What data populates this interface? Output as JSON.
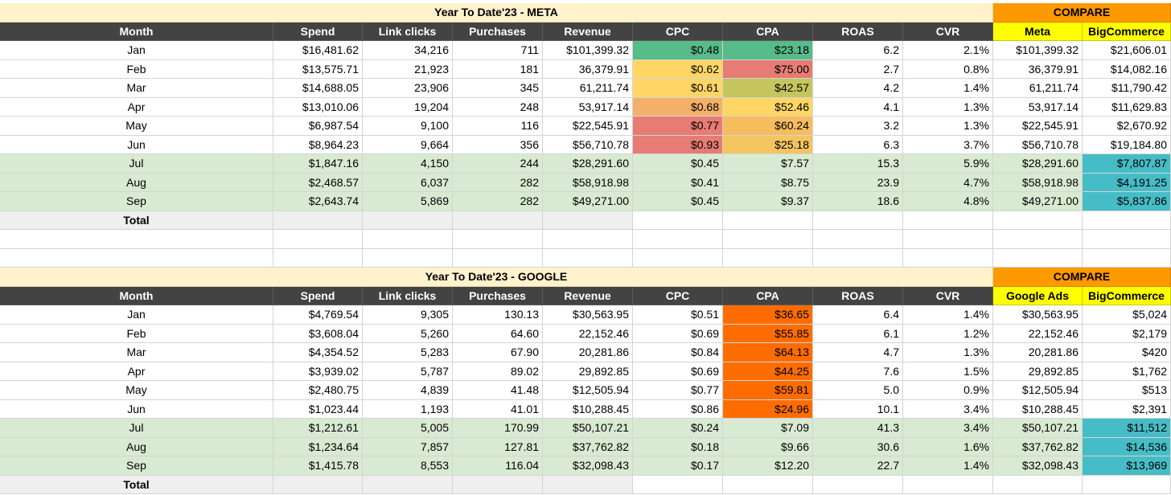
{
  "colors": {
    "header_bg": "#434343",
    "title_bg": "#fff2cc",
    "compare_bg": "#ff9900",
    "compare_sub_bg": "#ffff00",
    "highlight_row_bg": "#d9ead3",
    "total_bg": "#efefef",
    "teal": "#46bdc6",
    "cpa_orange": "#ff6d01"
  },
  "meta": {
    "title": "Year To Date'23 - META",
    "compare_title": "COMPARE",
    "headers": [
      "Month",
      "Spend",
      "Link clicks",
      "Purchases",
      "Revenue",
      "CPC",
      "CPA",
      "ROAS",
      "CVR",
      "Meta",
      "BigCommerce"
    ],
    "rows": [
      [
        "Jan",
        "$16,481.62",
        "34,216",
        "711",
        "$101,399.32",
        "$0.48",
        "$23.18",
        "6.2",
        "2.1%",
        "$101,399.32",
        "$21,606.01"
      ],
      [
        "Feb",
        "$13,575.71",
        "21,923",
        "181",
        "36,379.91",
        "$0.62",
        "$75.00",
        "2.7",
        "0.8%",
        "36,379.91",
        "$14,082.16"
      ],
      [
        "Mar",
        "$14,688.05",
        "23,906",
        "345",
        "61,211.74",
        "$0.61",
        "$42.57",
        "4.2",
        "1.4%",
        "61,211.74",
        "$11,790.42"
      ],
      [
        "Apr",
        "$13,010.06",
        "19,204",
        "248",
        "53,917.14",
        "$0.68",
        "$52.46",
        "4.1",
        "1.3%",
        "53,917.14",
        "$11,629.83"
      ],
      [
        "May",
        "$6,987.54",
        "9,100",
        "116",
        "$22,545.91",
        "$0.77",
        "$60.24",
        "3.2",
        "1.3%",
        "$22,545.91",
        "$2,670.92"
      ],
      [
        "Jun",
        "$8,964.23",
        "9,664",
        "356",
        "$56,710.78",
        "$0.93",
        "$25.18",
        "6.3",
        "3.7%",
        "$56,710.78",
        "$19,184.80"
      ],
      [
        "Jul",
        "$1,847.16",
        "4,150",
        "244",
        "$28,291.60",
        "$0.45",
        "$7.57",
        "15.3",
        "5.9%",
        "$28,291.60",
        "$7,807.87"
      ],
      [
        "Aug",
        "$2,468.57",
        "6,037",
        "282",
        "$58,918.98",
        "$0.41",
        "$8.75",
        "23.9",
        "4.7%",
        "$58,918.98",
        "$4,191.25"
      ],
      [
        "Sep",
        "$2,643.74",
        "5,869",
        "282",
        "$49,271.00",
        "$0.45",
        "$9.37",
        "18.6",
        "4.8%",
        "$49,271.00",
        "$5,837.86"
      ]
    ],
    "total_label": "Total",
    "cpc_colors": [
      "#57bb8a",
      "#ffd666",
      "#ffd666",
      "#f3b06b",
      "#e67c73",
      "#e67c73",
      null,
      null,
      null
    ],
    "cpa_colors": [
      "#57bb8a",
      "#e67c73",
      "#c4c65d",
      "#ffd666",
      "#f6bd5f",
      "#f4c461",
      null,
      null,
      null
    ]
  },
  "google": {
    "title": "Year To Date'23 - GOOGLE",
    "compare_title": "COMPARE",
    "headers": [
      "Month",
      "Spend",
      "Link clicks",
      "Purchases",
      "Revenue",
      "CPC",
      "CPA",
      "ROAS",
      "CVR",
      "Google Ads",
      "BigCommerce"
    ],
    "rows": [
      [
        "Jan",
        "$4,769.54",
        "9,305",
        "130.13",
        "$30,563.95",
        "$0.51",
        "$36.65",
        "6.4",
        "1.4%",
        "$30,563.95",
        "$5,024"
      ],
      [
        "Feb",
        "$3,608.04",
        "5,260",
        "64.60",
        "22,152.46",
        "$0.69",
        "$55.85",
        "6.1",
        "1.2%",
        "22,152.46",
        "$2,179"
      ],
      [
        "Mar",
        "$4,354.52",
        "5,283",
        "67.90",
        "20,281.86",
        "$0.84",
        "$64.13",
        "4.7",
        "1.3%",
        "20,281.86",
        "$420"
      ],
      [
        "Apr",
        "$3,939.02",
        "5,787",
        "89.02",
        "29,892.85",
        "$0.69",
        "$44.25",
        "7.6",
        "1.5%",
        "29,892.85",
        "$1,762"
      ],
      [
        "May",
        "$2,480.75",
        "4,839",
        "41.48",
        "$12,505.94",
        "$0.77",
        "$59.81",
        "5.0",
        "0.9%",
        "$12,505.94",
        "$513"
      ],
      [
        "Jun",
        "$1,023.44",
        "1,193",
        "41.01",
        "$10,288.45",
        "$0.86",
        "$24.96",
        "10.1",
        "3.4%",
        "$10,288.45",
        "$2,391"
      ],
      [
        "Jul",
        "$1,212.61",
        "5,005",
        "170.99",
        "$50,107.21",
        "$0.24",
        "$7.09",
        "41.3",
        "3.4%",
        "$50,107.21",
        "$11,512"
      ],
      [
        "Aug",
        "$1,234.64",
        "7,857",
        "127.81",
        "$37,762.82",
        "$0.18",
        "$9.66",
        "30.6",
        "1.6%",
        "$37,762.82",
        "$14,536"
      ],
      [
        "Sep",
        "$1,415.78",
        "8,553",
        "116.04",
        "$32,098.43",
        "$0.17",
        "$12.20",
        "22.7",
        "1.4%",
        "$32,098.43",
        "$13,969"
      ]
    ],
    "total_label": "Total",
    "cpa_colors": [
      "#ff6d01",
      "#ff6d01",
      "#ff6d01",
      "#ff6d01",
      "#ff6d01",
      "#ff6d01",
      null,
      null,
      null
    ]
  }
}
